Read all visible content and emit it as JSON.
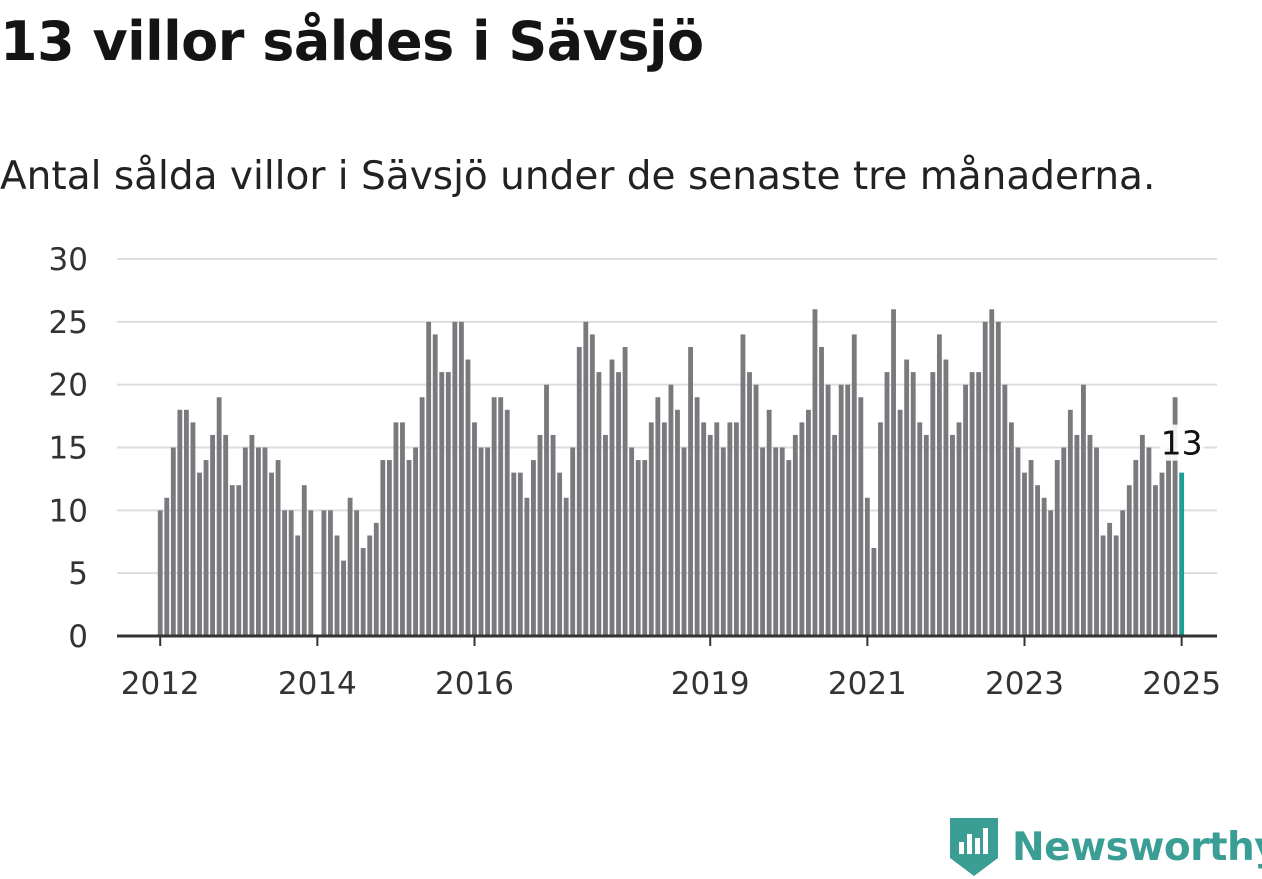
{
  "title": "13 villor såldes i Sävsjö",
  "subtitle": "Antal sålda villor i Sävsjö under de senaste tre månaderna.",
  "brand": {
    "name": "Newsworthy",
    "color": "#3a9e95",
    "icon": "newsworthy-logo-icon"
  },
  "colors": {
    "bar": "#7a7a7e",
    "highlight": "#1f9e96",
    "grid": "#dddddd",
    "axis": "#333333"
  },
  "chart_data": {
    "type": "bar",
    "ylim": [
      0,
      30
    ],
    "yticks": [
      0,
      5,
      10,
      15,
      20,
      25,
      30
    ],
    "xlim": [
      2011.45,
      2025.45
    ],
    "xticks": [
      2012,
      2014,
      2016,
      2019,
      2021,
      2023,
      2025
    ],
    "grid": true,
    "start": "2012-01",
    "interval": "month",
    "highlight_last": true,
    "last_value_label": "13",
    "values": [
      10,
      11,
      15,
      18,
      18,
      17,
      13,
      14,
      16,
      19,
      16,
      12,
      12,
      15,
      16,
      15,
      15,
      13,
      14,
      10,
      10,
      8,
      12,
      10,
      0,
      10,
      10,
      8,
      6,
      11,
      10,
      7,
      8,
      9,
      14,
      14,
      17,
      17,
      14,
      15,
      19,
      25,
      24,
      21,
      21,
      25,
      25,
      22,
      17,
      15,
      15,
      19,
      19,
      18,
      13,
      13,
      11,
      14,
      16,
      20,
      16,
      13,
      11,
      15,
      23,
      25,
      24,
      21,
      16,
      22,
      21,
      23,
      15,
      14,
      14,
      17,
      19,
      17,
      20,
      18,
      15,
      23,
      19,
      17,
      16,
      17,
      15,
      17,
      17,
      24,
      21,
      20,
      15,
      18,
      15,
      15,
      14,
      16,
      17,
      18,
      26,
      23,
      20,
      16,
      20,
      20,
      24,
      19,
      11,
      7,
      17,
      21,
      26,
      18,
      22,
      21,
      17,
      16,
      21,
      24,
      22,
      16,
      17,
      20,
      21,
      21,
      25,
      26,
      25,
      20,
      17,
      15,
      13,
      14,
      12,
      11,
      10,
      14,
      15,
      18,
      16,
      20,
      16,
      15,
      8,
      9,
      8,
      10,
      12,
      14,
      16,
      15,
      12,
      13,
      15,
      19,
      13
    ]
  }
}
